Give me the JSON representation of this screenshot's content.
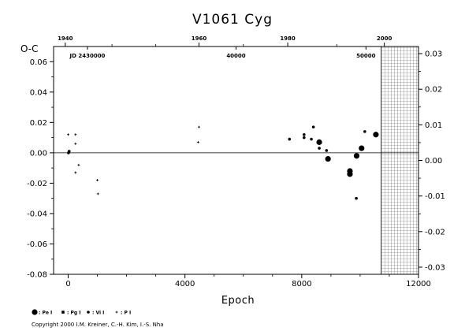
{
  "chart_data": {
    "type": "scatter",
    "title": "V1061  Cyg",
    "ylabel": "O-C",
    "xlabel": "Epoch",
    "xlim": [
      -500,
      12000
    ],
    "ylim": [
      -0.08,
      0.07
    ],
    "y2lim": [
      -0.032,
      0.032
    ],
    "x_ticks": [
      0,
      4000,
      8000,
      12000
    ],
    "x_tick_labels": [
      "0",
      "4000",
      "8000",
      "12000"
    ],
    "y_ticks": [
      -0.08,
      -0.06,
      -0.04,
      -0.02,
      0.0,
      0.02,
      0.04,
      0.06
    ],
    "y_tick_labels": [
      "-0.08",
      "-0.06",
      "-0.04",
      "-0.02",
      "0.00",
      "0.02",
      "0.04",
      "0.06"
    ],
    "y2_ticks": [
      -0.03,
      -0.02,
      -0.01,
      0.0,
      0.01,
      0.02,
      0.03
    ],
    "y2_tick_labels": [
      "-0.03",
      "-0.02",
      "-0.01",
      "0.00",
      "0.01",
      "0.02",
      "0.03"
    ],
    "top_year_ticks": [
      {
        "x": -100,
        "label": "1940"
      },
      {
        "x": 4480,
        "label": "1960"
      },
      {
        "x": 7520,
        "label": "1980"
      },
      {
        "x": 10830,
        "label": "2000"
      }
    ],
    "top_jd_ticks": [
      {
        "x": 660,
        "label": "JD  2430000"
      },
      {
        "x": 5750,
        "label": "40000"
      },
      {
        "x": 10200,
        "label": "50000"
      }
    ],
    "hatched_region_start": 10720,
    "zero_line": 0.0,
    "grid": false,
    "legend": [
      {
        "symbol": "pe",
        "label": ": Pe  I"
      },
      {
        "symbol": "pg",
        "label": ": Pg  I"
      },
      {
        "symbol": "vi",
        "label": ": Vi  I"
      },
      {
        "symbol": "p",
        "label": ": P  I"
      }
    ],
    "series": [
      {
        "symbol": "pe",
        "points": [
          {
            "x": 8600,
            "y": 0.007
          },
          {
            "x": 8900,
            "y": -0.004
          },
          {
            "x": 9650,
            "y": -0.014
          },
          {
            "x": 9650,
            "y": -0.012
          },
          {
            "x": 9880,
            "y": -0.002
          },
          {
            "x": 10050,
            "y": 0.003
          },
          {
            "x": 10540,
            "y": 0.012
          }
        ]
      },
      {
        "symbol": "vi",
        "points": [
          {
            "x": 7580,
            "y": 0.009
          },
          {
            "x": 8080,
            "y": 0.012
          },
          {
            "x": 8080,
            "y": 0.01
          },
          {
            "x": 8330,
            "y": 0.009
          },
          {
            "x": 8400,
            "y": 0.017
          },
          {
            "x": 8600,
            "y": 0.003
          },
          {
            "x": 8850,
            "y": 0.0015
          },
          {
            "x": 9870,
            "y": -0.03
          },
          {
            "x": 10160,
            "y": 0.014
          },
          {
            "x": 30,
            "y": 0.001
          },
          {
            "x": 10,
            "y": 0.0
          }
        ]
      },
      {
        "symbol": "p",
        "points": [
          {
            "x": 0,
            "y": 0.012
          },
          {
            "x": 20,
            "y": 0.0
          },
          {
            "x": 250,
            "y": 0.012
          },
          {
            "x": 250,
            "y": 0.006
          },
          {
            "x": 250,
            "y": -0.013
          },
          {
            "x": 360,
            "y": -0.008
          },
          {
            "x": 1000,
            "y": -0.018
          },
          {
            "x": 1020,
            "y": -0.027
          },
          {
            "x": 4480,
            "y": 0.017
          },
          {
            "x": 4450,
            "y": 0.007
          },
          {
            "x": 50,
            "y": 0.001
          }
        ]
      }
    ]
  },
  "copyright": "Copyright 2000 I.M. Kreiner, C.-H. Kim, I.-S. Nha"
}
